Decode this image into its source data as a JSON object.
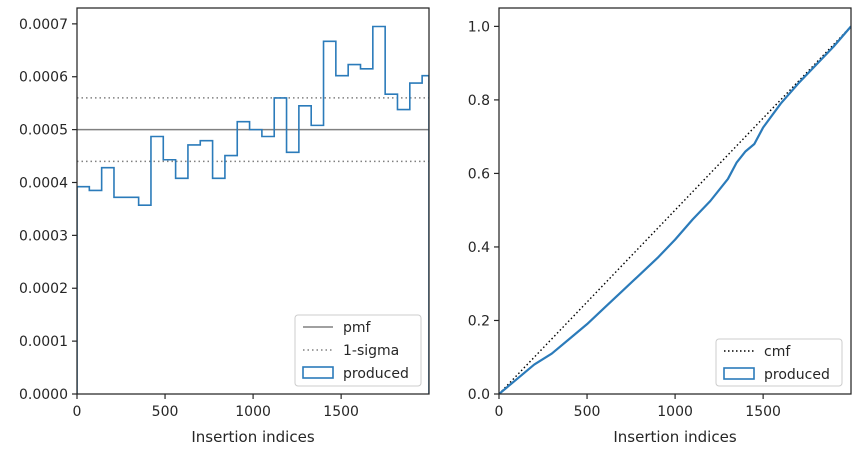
{
  "chart_data": [
    {
      "type": "histogram-step",
      "title": "",
      "xlabel": "Insertion indices",
      "ylabel": "",
      "xlim": [
        0,
        1999
      ],
      "ylim": [
        0,
        0.00073
      ],
      "xticks": [
        0,
        500,
        1000,
        1500
      ],
      "xtick_labels": [
        "0",
        "500",
        "1000",
        "1500"
      ],
      "yticks": [
        0,
        0.0001,
        0.0002,
        0.0003,
        0.0004,
        0.0005,
        0.0006,
        0.0007
      ],
      "ytick_labels": [
        "0.0000",
        "0.0001",
        "0.0002",
        "0.0003",
        "0.0004",
        "0.0005",
        "0.0006",
        "0.0007"
      ],
      "grid": false,
      "legend_location": "lower-right",
      "colors": {
        "produced": "#2b7bba",
        "reference": "#808080"
      },
      "reference_lines": [
        {
          "name": "pmf",
          "style": "solid",
          "y": 0.0005
        },
        {
          "name": "1-sigma",
          "style": "dotted",
          "y": [
            0.00044,
            0.00056
          ]
        }
      ],
      "series": [
        {
          "name": "produced",
          "style": "step-histogram",
          "bin_edges": [
            0,
            70,
            140,
            210,
            280,
            350,
            420,
            490,
            560,
            630,
            700,
            770,
            840,
            910,
            980,
            1050,
            1120,
            1190,
            1260,
            1330,
            1400,
            1470,
            1540,
            1610,
            1680,
            1750,
            1820,
            1890,
            1960,
            1999
          ],
          "values": [
            0.000392,
            0.000385,
            0.000428,
            0.000372,
            0.000372,
            0.000357,
            0.000487,
            0.000443,
            0.000408,
            0.000471,
            0.000479,
            0.000408,
            0.000451,
            0.000515,
            0.0005,
            0.000487,
            0.00056,
            0.000457,
            0.000545,
            0.000508,
            0.000667,
            0.000602,
            0.000623,
            0.000615,
            0.000695,
            0.000567,
            0.000538,
            0.000588,
            0.000602
          ]
        }
      ],
      "legend": [
        "pmf",
        "1-sigma",
        "produced"
      ]
    },
    {
      "type": "cumulative-line",
      "title": "",
      "xlabel": "Insertion indices",
      "ylabel": "",
      "xlim": [
        0,
        1999
      ],
      "ylim": [
        0,
        1.05
      ],
      "xticks": [
        0,
        500,
        1000,
        1500
      ],
      "xtick_labels": [
        "0",
        "500",
        "1000",
        "1500"
      ],
      "yticks": [
        0,
        0.2,
        0.4,
        0.6,
        0.8,
        1.0
      ],
      "ytick_labels": [
        "0.0",
        "0.2",
        "0.4",
        "0.6",
        "0.8",
        "1.0"
      ],
      "grid": false,
      "legend_location": "lower-right",
      "colors": {
        "produced": "#2b7bba",
        "cmf": "#000000"
      },
      "series": [
        {
          "name": "cmf",
          "style": "dotted",
          "x": [
            0,
            1999
          ],
          "y": [
            0,
            1.0
          ]
        },
        {
          "name": "produced",
          "style": "step-line",
          "x": [
            0,
            100,
            200,
            300,
            400,
            500,
            600,
            700,
            800,
            900,
            1000,
            1100,
            1200,
            1300,
            1350,
            1400,
            1450,
            1500,
            1600,
            1700,
            1800,
            1900,
            1999
          ],
          "y": [
            0,
            0.04,
            0.08,
            0.11,
            0.15,
            0.19,
            0.235,
            0.28,
            0.325,
            0.37,
            0.42,
            0.475,
            0.525,
            0.585,
            0.63,
            0.66,
            0.68,
            0.725,
            0.79,
            0.845,
            0.895,
            0.945,
            1.0
          ]
        }
      ],
      "legend": [
        "cmf",
        "produced"
      ]
    }
  ]
}
